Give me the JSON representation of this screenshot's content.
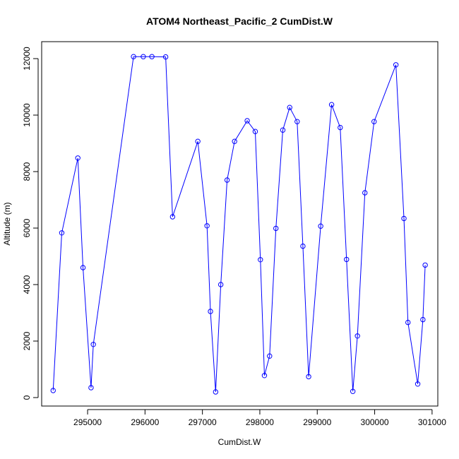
{
  "chart_data": {
    "type": "line",
    "title": "ATOM4 Northeast_Pacific_2 CumDist.W",
    "xlabel": "CumDist.W",
    "ylabel": "Altitude (m)",
    "xlim": [
      294200,
      301100
    ],
    "ylim": [
      -300,
      12600
    ],
    "xticks": [
      295000,
      296000,
      297000,
      298000,
      299000,
      300000,
      301000
    ],
    "yticks": [
      0,
      2000,
      4000,
      6000,
      8000,
      10000,
      12000
    ],
    "grid": false,
    "legend": "none",
    "series": [
      {
        "color": "#0000ff",
        "markers": "open-circle",
        "x": [
          294400,
          294550,
          294830,
          294920,
          295060,
          295100,
          295800,
          295970,
          296120,
          296360,
          296480,
          296920,
          297080,
          297140,
          297230,
          297320,
          297430,
          297560,
          297780,
          297920,
          298010,
          298080,
          298170,
          298280,
          298400,
          298520,
          298650,
          298750,
          298850,
          299060,
          299250,
          299400,
          299510,
          299620,
          299700,
          299830,
          299990,
          300370,
          300510,
          300580,
          300750,
          300840,
          300880
        ],
        "y": [
          250,
          5830,
          8480,
          4600,
          350,
          1880,
          12070,
          12070,
          12070,
          12060,
          6400,
          9070,
          6080,
          3050,
          200,
          4000,
          7700,
          9070,
          9800,
          9420,
          4880,
          780,
          1470,
          5990,
          9470,
          10270,
          9770,
          5360,
          740,
          6070,
          10370,
          9560,
          4890,
          220,
          2180,
          7250,
          9770,
          11780,
          6340,
          2660,
          480,
          2760,
          4690
        ]
      }
    ]
  }
}
